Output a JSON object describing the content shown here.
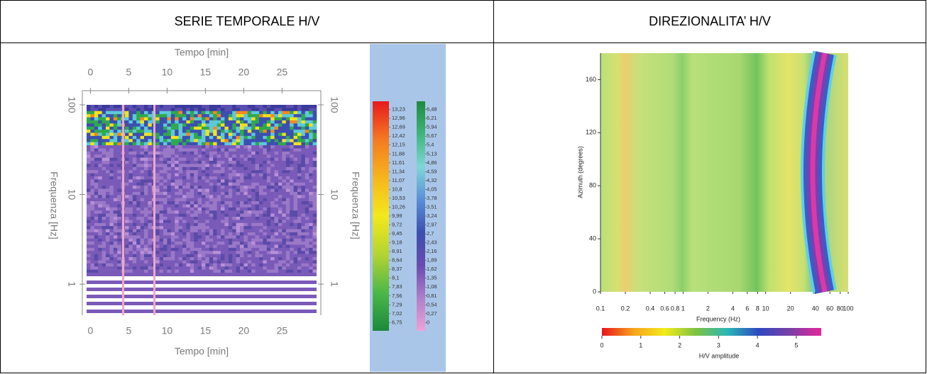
{
  "header": {
    "left": "SERIE TEMPORALE H/V",
    "right": "DIREZIONALITA’ H/V"
  },
  "chart_data": [
    {
      "type": "heatmap",
      "x_label": "Tempo [min]",
      "y_label": "Frequenza [Hz]",
      "xlim": [
        -0.5,
        29.5
      ],
      "xticks": [
        0,
        5,
        10,
        15,
        20,
        25
      ],
      "ylim": [
        0.45,
        100
      ],
      "yticks": [
        1,
        10,
        100
      ],
      "log_y": true,
      "colorbars": [
        {
          "lim": [
            6.5,
            13.48
          ],
          "colors": [
            "#e8191c",
            "#f47a20",
            "#f7b51d",
            "#f4e81c",
            "#b4d432",
            "#4cb848",
            "#1a8a3c"
          ],
          "ticks": [
            {
              "value": 13.23,
              "label": "13,23"
            },
            {
              "value": 12.96,
              "label": "12,96"
            },
            {
              "value": 12.69,
              "label": "12,69"
            },
            {
              "value": 12.42,
              "label": "12,42"
            },
            {
              "value": 12.15,
              "label": "12,15"
            },
            {
              "value": 11.88,
              "label": "11,88"
            },
            {
              "value": 11.61,
              "label": "11,61"
            },
            {
              "value": 11.34,
              "label": "11,34"
            },
            {
              "value": 11.07,
              "label": "11,07"
            },
            {
              "value": 10.8,
              "label": "10,8"
            },
            {
              "value": 10.53,
              "label": "10,53"
            },
            {
              "value": 10.26,
              "label": "10,26"
            },
            {
              "value": 9.99,
              "label": "9,99"
            },
            {
              "value": 9.72,
              "label": "9,72"
            },
            {
              "value": 9.45,
              "label": "9,45"
            },
            {
              "value": 9.18,
              "label": "9,18"
            },
            {
              "value": 8.91,
              "label": "8,91"
            },
            {
              "value": 8.64,
              "label": "8,64"
            },
            {
              "value": 8.37,
              "label": "8,37"
            },
            {
              "value": 8.1,
              "label": "8,1"
            },
            {
              "value": 7.83,
              "label": "7,83"
            },
            {
              "value": 7.56,
              "label": "7,56"
            },
            {
              "value": 7.29,
              "label": "7,29"
            },
            {
              "value": 7.02,
              "label": "7,02"
            },
            {
              "value": 6.75,
              "label": "6,75"
            }
          ]
        },
        {
          "lim": [
            -0.25,
            6.73
          ],
          "colors": [
            "#1f8a3c",
            "#3fb57a",
            "#7fd6d8",
            "#5b8fd6",
            "#3c4fb0",
            "#6a4bb0",
            "#b07ec8",
            "#f0a0d8"
          ],
          "ticks": [
            {
              "value": 6.48,
              "label": "6,48"
            },
            {
              "value": 6.21,
              "label": "6,21"
            },
            {
              "value": 5.94,
              "label": "5,94"
            },
            {
              "value": 5.67,
              "label": "5,67"
            },
            {
              "value": 5.4,
              "label": "5,4"
            },
            {
              "value": 5.13,
              "label": "5,13"
            },
            {
              "value": 4.86,
              "label": "4,86"
            },
            {
              "value": 4.59,
              "label": "4,59"
            },
            {
              "value": 4.32,
              "label": "4,32"
            },
            {
              "value": 4.05,
              "label": "4,05"
            },
            {
              "value": 3.78,
              "label": "3,78"
            },
            {
              "value": 3.51,
              "label": "3,51"
            },
            {
              "value": 3.24,
              "label": "3,24"
            },
            {
              "value": 2.97,
              "label": "2,97"
            },
            {
              "value": 2.7,
              "label": "2,7"
            },
            {
              "value": 2.43,
              "label": "2,43"
            },
            {
              "value": 2.16,
              "label": "2,16"
            },
            {
              "value": 1.89,
              "label": "1,89"
            },
            {
              "value": 1.62,
              "label": "1,62"
            },
            {
              "value": 1.35,
              "label": "1,35"
            },
            {
              "value": 1.08,
              "label": "1,08"
            },
            {
              "value": 0.81,
              "label": "0,81"
            },
            {
              "value": 0.54,
              "label": "0,54"
            },
            {
              "value": 0.27,
              "label": "0,27"
            },
            0
          ]
        }
      ]
    },
    {
      "type": "heatmap",
      "x_label": "Frequency (Hz)",
      "y_label": "Azimuth (degrees)",
      "xlim": [
        0.1,
        100
      ],
      "xticks": [
        0.1,
        0.2,
        0.4,
        0.6,
        0.8,
        1,
        2,
        4,
        6,
        8,
        10,
        20,
        40,
        60,
        80,
        100
      ],
      "log_x": true,
      "ylim": [
        0,
        180
      ],
      "yticks": [
        0,
        40,
        80,
        120,
        160
      ],
      "colorbar": {
        "lim": [
          0,
          5.64
        ],
        "ticks": [
          0,
          1,
          2,
          3,
          4,
          5
        ],
        "label": "H/V amplitude",
        "colors": [
          "#e8141c",
          "#f6a21c",
          "#f2ec1c",
          "#7dc242",
          "#2ab7b7",
          "#2e49c0",
          "#7b3fa8",
          "#e4279a"
        ]
      }
    }
  ]
}
